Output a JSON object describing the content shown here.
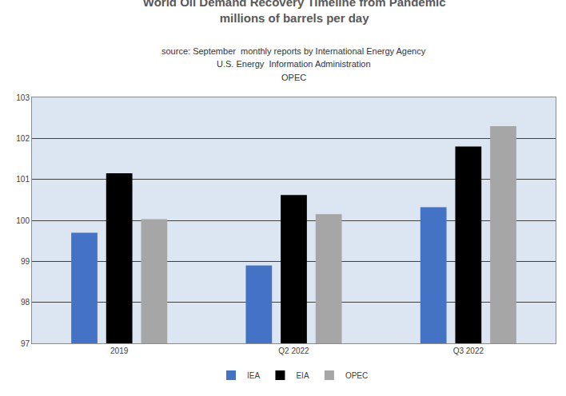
{
  "chart_data": {
    "type": "bar",
    "title": "World Oil Demand Recovery Timeline from Pandemic",
    "subtitle": "millions of barrels per day",
    "annotations": [
      "source: September  monthly reports by International Energy Agency",
      "U.S. Energy  Information Administration",
      "OPEC"
    ],
    "categories": [
      "2019",
      "Q2 2022",
      "Q3 2022"
    ],
    "series": [
      {
        "name": "IEA",
        "color": "#4472c4",
        "values": [
          99.7,
          98.9,
          100.32
        ]
      },
      {
        "name": "EIA",
        "color": "#000000",
        "values": [
          101.15,
          100.62,
          101.8
        ]
      },
      {
        "name": "OPEC",
        "color": "#a6a6a6",
        "values": [
          100.03,
          100.15,
          102.3
        ]
      }
    ],
    "ylim": [
      97,
      103
    ],
    "yticks": [
      97,
      98,
      99,
      100,
      101,
      102,
      103
    ],
    "grid": true,
    "legend": "bottom"
  }
}
